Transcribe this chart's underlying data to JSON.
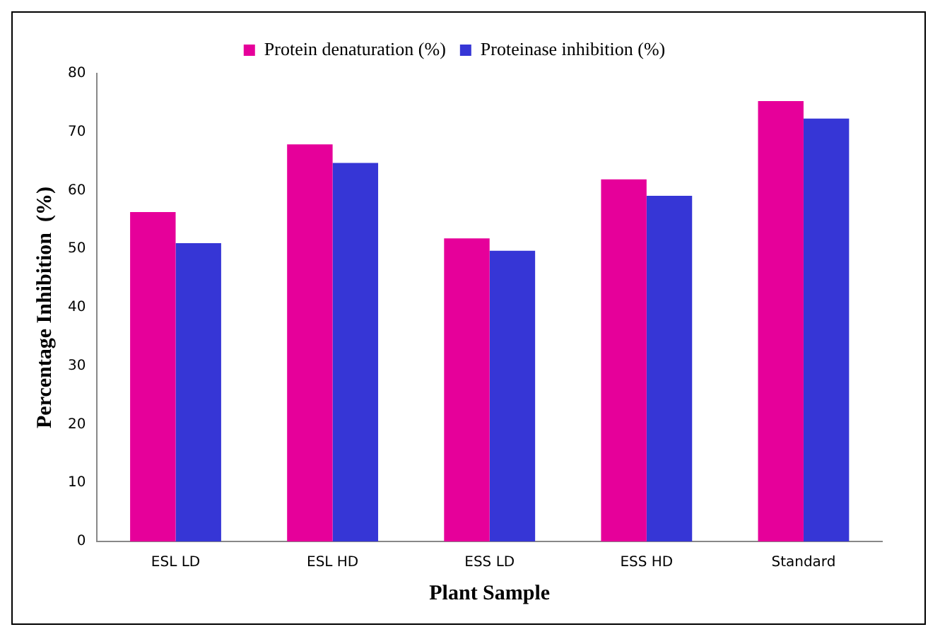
{
  "chart_data": {
    "type": "bar",
    "xlabel": "Plant Sample",
    "ylabel": "Percentage Inhibition  (%)",
    "categories": [
      "ESL LD",
      "ESL HD",
      "ESS LD",
      "ESS HD",
      "Standard"
    ],
    "series": [
      {
        "name": "Protein denaturation (%)",
        "color": "#e6009a",
        "values": [
          56.3,
          67.9,
          51.8,
          61.9,
          75.3
        ]
      },
      {
        "name": "Proteinase inhibition (%)",
        "color": "#3636d6",
        "values": [
          51.0,
          64.7,
          49.7,
          59.1,
          72.3
        ]
      }
    ],
    "ylim": [
      0,
      80
    ],
    "yticks": [
      0,
      10,
      20,
      30,
      40,
      50,
      60,
      70,
      80
    ],
    "grid": false,
    "legend": "top"
  }
}
